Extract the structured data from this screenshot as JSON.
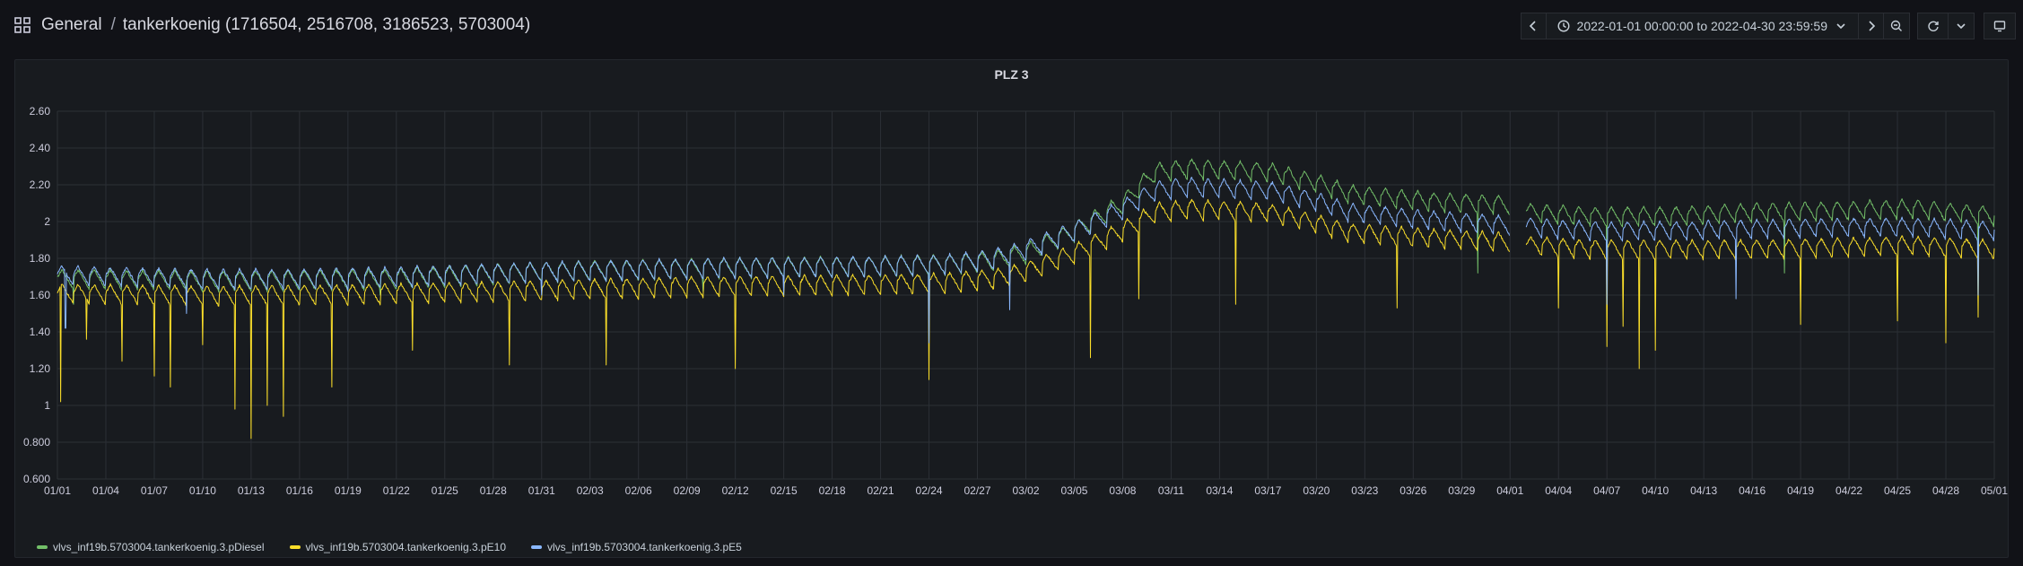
{
  "breadcrumb": {
    "folder": "General",
    "separator": "/",
    "dashboard": "tankerkoenig (1716504, 2516708, 3186523, 5703004)"
  },
  "toolbar": {
    "time_range": "2022-01-01 00:00:00 to 2022-04-30 23:59:59"
  },
  "panel": {
    "title": "PLZ 3"
  },
  "colors": {
    "background": "#111217",
    "panel": "#181b1f",
    "grid": "#2c3036",
    "diesel": "#73bf69",
    "e10": "#fade2a",
    "e5": "#8ab8ff"
  },
  "chart_data": {
    "type": "line",
    "title": "PLZ 3",
    "xlabel": "",
    "ylabel": "",
    "x_range_days": [
      0,
      120
    ],
    "ylim": [
      0.6,
      2.6
    ],
    "y_ticks": [
      "0.600",
      "0.800",
      "1",
      "1.20",
      "1.40",
      "1.60",
      "1.80",
      "2",
      "2.20",
      "2.40",
      "2.60"
    ],
    "x_ticks": [
      "01/01",
      "01/04",
      "01/07",
      "01/10",
      "01/13",
      "01/16",
      "01/19",
      "01/22",
      "01/25",
      "01/28",
      "01/31",
      "02/03",
      "02/06",
      "02/09",
      "02/12",
      "02/15",
      "02/18",
      "02/21",
      "02/24",
      "02/27",
      "03/02",
      "03/05",
      "03/08",
      "03/11",
      "03/14",
      "03/17",
      "03/20",
      "03/23",
      "03/26",
      "03/29",
      "04/01",
      "04/04",
      "04/07",
      "04/10",
      "04/13",
      "04/16",
      "04/19",
      "04/22",
      "04/25",
      "04/28",
      "05/01"
    ],
    "gap_days": [
      90.0,
      91.0
    ],
    "series": [
      {
        "name": "vlvs_inf19b.5703004.tankerkoenig.3.pDiesel",
        "color": "#73bf69",
        "daily_peak": [
          [
            0,
            1.74
          ],
          [
            10,
            1.73
          ],
          [
            20,
            1.74
          ],
          [
            30,
            1.78
          ],
          [
            40,
            1.8
          ],
          [
            50,
            1.81
          ],
          [
            55,
            1.82
          ],
          [
            58,
            1.84
          ],
          [
            60,
            1.88
          ],
          [
            63,
            2.0
          ],
          [
            66,
            2.15
          ],
          [
            68,
            2.32
          ],
          [
            70,
            2.34
          ],
          [
            75,
            2.32
          ],
          [
            78,
            2.26
          ],
          [
            80,
            2.2
          ],
          [
            85,
            2.16
          ],
          [
            90,
            2.14
          ],
          [
            91,
            2.1
          ],
          [
            95,
            2.08
          ],
          [
            100,
            2.08
          ],
          [
            105,
            2.1
          ],
          [
            110,
            2.11
          ],
          [
            115,
            2.12
          ],
          [
            120,
            2.08
          ]
        ],
        "dips": [
          [
            1,
            1.55
          ],
          [
            20,
            1.6
          ],
          [
            40,
            1.62
          ],
          [
            54,
            1.6
          ],
          [
            88,
            1.72
          ],
          [
            96,
            1.75
          ],
          [
            107,
            1.72
          ],
          [
            119,
            1.72
          ]
        ]
      },
      {
        "name": "vlvs_inf19b.5703004.tankerkoenig.3.pE10",
        "color": "#fade2a",
        "daily_peak": [
          [
            0,
            1.66
          ],
          [
            10,
            1.65
          ],
          [
            20,
            1.66
          ],
          [
            30,
            1.68
          ],
          [
            40,
            1.7
          ],
          [
            50,
            1.71
          ],
          [
            55,
            1.72
          ],
          [
            58,
            1.74
          ],
          [
            60,
            1.78
          ],
          [
            63,
            1.88
          ],
          [
            66,
            2.0
          ],
          [
            68,
            2.1
          ],
          [
            70,
            2.12
          ],
          [
            75,
            2.1
          ],
          [
            78,
            2.04
          ],
          [
            80,
            1.99
          ],
          [
            85,
            1.96
          ],
          [
            90,
            1.94
          ],
          [
            91,
            1.92
          ],
          [
            95,
            1.9
          ],
          [
            100,
            1.9
          ],
          [
            105,
            1.9
          ],
          [
            110,
            1.91
          ],
          [
            115,
            1.92
          ],
          [
            120,
            1.9
          ]
        ],
        "dips": [
          [
            0.2,
            1.02
          ],
          [
            1.8,
            1.36
          ],
          [
            4,
            1.24
          ],
          [
            6,
            1.16
          ],
          [
            7,
            1.1
          ],
          [
            9,
            1.33
          ],
          [
            11,
            0.98
          ],
          [
            12,
            0.82
          ],
          [
            13,
            1.0
          ],
          [
            14,
            0.94
          ],
          [
            17,
            1.1
          ],
          [
            22,
            1.3
          ],
          [
            28,
            1.22
          ],
          [
            34,
            1.22
          ],
          [
            42,
            1.2
          ],
          [
            54,
            1.14
          ],
          [
            64,
            1.26
          ],
          [
            67,
            1.58
          ],
          [
            73,
            1.55
          ],
          [
            83,
            1.53
          ],
          [
            93,
            1.53
          ],
          [
            96,
            1.32
          ],
          [
            97,
            1.43
          ],
          [
            98,
            1.2
          ],
          [
            99,
            1.3
          ],
          [
            108,
            1.44
          ],
          [
            114,
            1.46
          ],
          [
            117,
            1.34
          ],
          [
            119,
            1.48
          ]
        ]
      },
      {
        "name": "vlvs_inf19b.5703004.tankerkoenig.3.pE5",
        "color": "#8ab8ff",
        "daily_peak": [
          [
            0,
            1.76
          ],
          [
            10,
            1.74
          ],
          [
            20,
            1.75
          ],
          [
            30,
            1.78
          ],
          [
            40,
            1.8
          ],
          [
            50,
            1.81
          ],
          [
            55,
            1.82
          ],
          [
            58,
            1.85
          ],
          [
            60,
            1.9
          ],
          [
            63,
            2.0
          ],
          [
            66,
            2.12
          ],
          [
            68,
            2.22
          ],
          [
            70,
            2.24
          ],
          [
            75,
            2.22
          ],
          [
            78,
            2.16
          ],
          [
            80,
            2.1
          ],
          [
            85,
            2.06
          ],
          [
            90,
            2.03
          ],
          [
            91,
            2.02
          ],
          [
            95,
            2.0
          ],
          [
            100,
            2.0
          ],
          [
            105,
            2.01
          ],
          [
            110,
            2.02
          ],
          [
            115,
            2.02
          ],
          [
            120,
            2.0
          ]
        ],
        "dips": [
          [
            0.5,
            1.42
          ],
          [
            8,
            1.5
          ],
          [
            18,
            1.62
          ],
          [
            30,
            1.6
          ],
          [
            45,
            1.6
          ],
          [
            54,
            1.34
          ],
          [
            59,
            1.52
          ],
          [
            96,
            1.55
          ],
          [
            104,
            1.58
          ],
          [
            119,
            1.6
          ]
        ]
      }
    ]
  }
}
